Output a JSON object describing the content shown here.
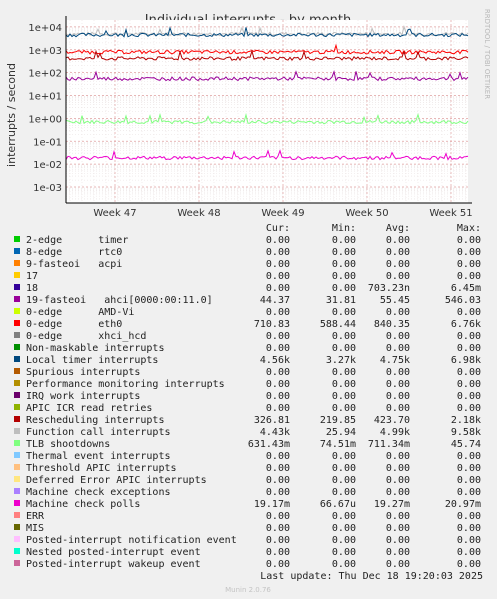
{
  "chart_data": {
    "type": "line",
    "title": "Individual interrupts - by month",
    "ylabel": "interrupts / second",
    "yscale": "log",
    "ylim": [
      0.0002,
      20000
    ],
    "y_ticks": [
      {
        "value": 10000,
        "label": "1e+04"
      },
      {
        "value": 1000,
        "label": "1e+03"
      },
      {
        "value": 100,
        "label": "1e+02"
      },
      {
        "value": 10,
        "label": "1e+01"
      },
      {
        "value": 1,
        "label": "1e+00"
      },
      {
        "value": 0.1,
        "label": "1e-01"
      },
      {
        "value": 0.01,
        "label": "1e-02"
      },
      {
        "value": 0.001,
        "label": "1e-03"
      }
    ],
    "x_ticks": [
      "Week 47",
      "Week 48",
      "Week 49",
      "Week 50",
      "Week 51"
    ],
    "grid": true,
    "watermark": "RRDTOOL / TOBI OETIKER",
    "columns": [
      "Cur:",
      "Min:",
      "Avg:",
      "Max:"
    ],
    "series": [
      {
        "name": "2-edge      timer",
        "color": "#00cc00",
        "cur": "0.00",
        "min": "0.00",
        "avg": "0.00",
        "max": "0.00"
      },
      {
        "name": "8-edge      rtc0",
        "color": "#0066b3",
        "cur": "0.00",
        "min": "0.00",
        "avg": "0.00",
        "max": "0.00"
      },
      {
        "name": "9-fasteoi   acpi",
        "color": "#ff8000",
        "cur": "0.00",
        "min": "0.00",
        "avg": "0.00",
        "max": "0.00"
      },
      {
        "name": "17",
        "color": "#ffcc00",
        "cur": "0.00",
        "min": "0.00",
        "avg": "0.00",
        "max": "0.00"
      },
      {
        "name": "18",
        "color": "#330099",
        "cur": "0.00",
        "min": "0.00",
        "avg": "703.23n",
        "max": "6.45m"
      },
      {
        "name": "19-fasteoi   ahci[0000:00:11.0]",
        "color": "#990099",
        "cur": "44.37",
        "min": "31.81",
        "avg": "55.45",
        "max": "546.03"
      },
      {
        "name": "0-edge      AMD-Vi",
        "color": "#ccff00",
        "cur": "0.00",
        "min": "0.00",
        "avg": "0.00",
        "max": "0.00"
      },
      {
        "name": "0-edge      eth0",
        "color": "#ff0000",
        "cur": "710.83",
        "min": "588.44",
        "avg": "840.35",
        "max": "6.76k"
      },
      {
        "name": "0-edge      xhci_hcd",
        "color": "#808080",
        "cur": "0.00",
        "min": "0.00",
        "avg": "0.00",
        "max": "0.00"
      },
      {
        "name": "Non-maskable interrupts",
        "color": "#008f00",
        "cur": "0.00",
        "min": "0.00",
        "avg": "0.00",
        "max": "0.00"
      },
      {
        "name": "Local timer interrupts",
        "color": "#00487d",
        "cur": "4.56k",
        "min": "3.27k",
        "avg": "4.75k",
        "max": "6.98k"
      },
      {
        "name": "Spurious interrupts",
        "color": "#b35a00",
        "cur": "0.00",
        "min": "0.00",
        "avg": "0.00",
        "max": "0.00"
      },
      {
        "name": "Performance monitoring interrupts",
        "color": "#b38f00",
        "cur": "0.00",
        "min": "0.00",
        "avg": "0.00",
        "max": "0.00"
      },
      {
        "name": "IRQ work interrupts",
        "color": "#6b006b",
        "cur": "0.00",
        "min": "0.00",
        "avg": "0.00",
        "max": "0.00"
      },
      {
        "name": "APIC ICR read retries",
        "color": "#8fb300",
        "cur": "0.00",
        "min": "0.00",
        "avg": "0.00",
        "max": "0.00"
      },
      {
        "name": "Rescheduling interrupts",
        "color": "#b30000",
        "cur": "326.81",
        "min": "219.85",
        "avg": "423.70",
        "max": "2.18k"
      },
      {
        "name": "Function call interrupts",
        "color": "#bebebe",
        "cur": "4.43k",
        "min": "25.94",
        "avg": "4.99k",
        "max": "9.58k"
      },
      {
        "name": "TLB shootdowns",
        "color": "#80ff80",
        "cur": "631.43m",
        "min": "74.51m",
        "avg": "711.34m",
        "max": "45.74"
      },
      {
        "name": "Thermal event interrupts",
        "color": "#80c9ff",
        "cur": "0.00",
        "min": "0.00",
        "avg": "0.00",
        "max": "0.00"
      },
      {
        "name": "Threshold APIC interrupts",
        "color": "#ffc080",
        "cur": "0.00",
        "min": "0.00",
        "avg": "0.00",
        "max": "0.00"
      },
      {
        "name": "Deferred Error APIC interrupts",
        "color": "#ffe680",
        "cur": "0.00",
        "min": "0.00",
        "avg": "0.00",
        "max": "0.00"
      },
      {
        "name": "Machine check exceptions",
        "color": "#aa80ff",
        "cur": "0.00",
        "min": "0.00",
        "avg": "0.00",
        "max": "0.00"
      },
      {
        "name": "Machine check polls",
        "color": "#ee00cc",
        "cur": "19.17m",
        "min": "66.67u",
        "avg": "19.27m",
        "max": "20.97m"
      },
      {
        "name": "ERR",
        "color": "#ff8080",
        "cur": "0.00",
        "min": "0.00",
        "avg": "0.00",
        "max": "0.00"
      },
      {
        "name": "MIS",
        "color": "#666600",
        "cur": "0.00",
        "min": "0.00",
        "avg": "0.00",
        "max": "0.00"
      },
      {
        "name": "Posted-interrupt notification event",
        "color": "#ffbfff",
        "cur": "0.00",
        "min": "0.00",
        "avg": "0.00",
        "max": "0.00"
      },
      {
        "name": "Nested posted-interrupt event",
        "color": "#00ffcc",
        "cur": "0.00",
        "min": "0.00",
        "avg": "0.00",
        "max": "0.00"
      },
      {
        "name": "Posted-interrupt wakeup event",
        "color": "#cc6699",
        "cur": "0.00",
        "min": "0.00",
        "avg": "0.00",
        "max": "0.00"
      }
    ],
    "plotted_levels": [
      {
        "series": "Function call interrupts",
        "value": 5000
      },
      {
        "series": "Local timer interrupts",
        "value": 4500
      },
      {
        "series": "eth0",
        "value": 800
      },
      {
        "series": "Rescheduling interrupts",
        "value": 420
      },
      {
        "series": "ahci",
        "value": 55
      },
      {
        "series": "TLB shootdowns",
        "value": 0.7
      },
      {
        "series": "Machine check polls",
        "value": 0.019
      }
    ],
    "last_update": "Last update: Thu Dec 18 19:20:03 2025",
    "footer": "Munin 2.0.76"
  }
}
